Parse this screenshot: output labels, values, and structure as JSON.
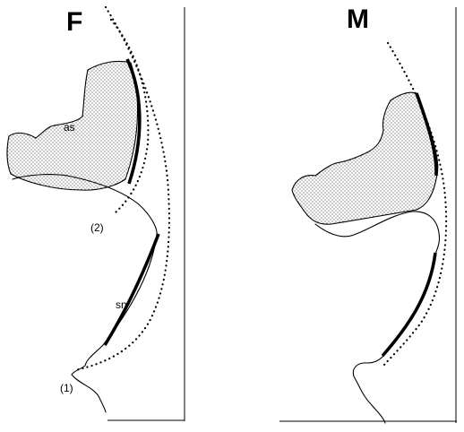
{
  "panels": [
    {
      "letter": "F",
      "labels": {
        "sinus": "as",
        "nose": "sn",
        "point1": "(1)",
        "point2": "(2)"
      }
    },
    {
      "letter": "M"
    }
  ]
}
